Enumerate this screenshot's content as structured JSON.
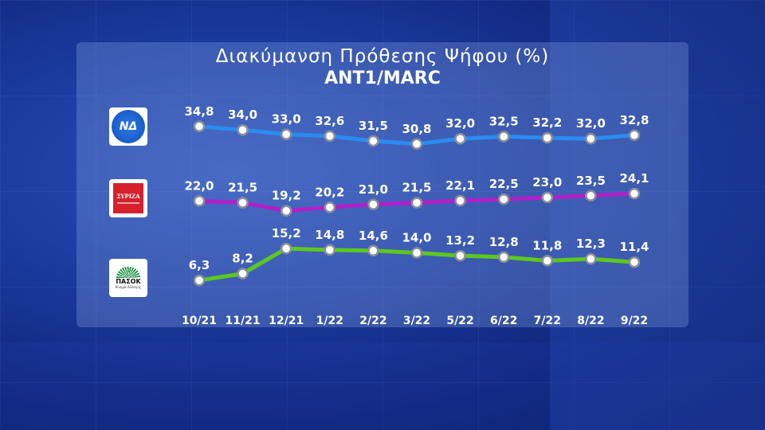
{
  "title": "Διακύμανση Πρόθεσης Ψήφου (%)",
  "subtitle": "ANT1/MARC",
  "logos": {
    "nd": "ΝΔ",
    "syriza": "ΣΥΡΙΖΑ",
    "pasok": "ΠΑΣΟΚ",
    "pasok_sub": "Κίνημα Αλλαγής"
  },
  "chart_data": {
    "type": "line",
    "categories": [
      "10/21",
      "11/21",
      "12/21",
      "1/22",
      "2/22",
      "3/22",
      "5/22",
      "6/22",
      "7/22",
      "8/22",
      "9/22"
    ],
    "series": [
      {
        "name": "ΝΔ",
        "color": "#2a8cf0",
        "values": [
          34.8,
          34.0,
          33.0,
          32.6,
          31.5,
          30.8,
          32.0,
          32.5,
          32.2,
          32.0,
          32.8
        ],
        "labels": [
          "34,8",
          "34,0",
          "33,0",
          "32,6",
          "31,5",
          "30,8",
          "32,0",
          "32,5",
          "32,2",
          "32,0",
          "32,8"
        ]
      },
      {
        "name": "ΣΥΡΙΖΑ",
        "color": "#b020c8",
        "values": [
          22.0,
          21.5,
          19.2,
          20.2,
          21.0,
          21.5,
          22.1,
          22.5,
          23.0,
          23.5,
          24.1
        ],
        "labels": [
          "22,0",
          "21,5",
          "19,2",
          "20,2",
          "21,0",
          "21,5",
          "22,1",
          "22,5",
          "23,0",
          "23,5",
          "24,1"
        ]
      },
      {
        "name": "ΠΑΣΟΚ",
        "color": "#5cc81e",
        "values": [
          6.3,
          8.2,
          15.2,
          14.8,
          14.6,
          14.0,
          13.2,
          12.8,
          11.8,
          12.3,
          11.4
        ],
        "labels": [
          "6,3",
          "8,2",
          "15,2",
          "14,8",
          "14,6",
          "14,0",
          "13,2",
          "12,8",
          "11,8",
          "12,3",
          "11,4"
        ]
      }
    ]
  }
}
